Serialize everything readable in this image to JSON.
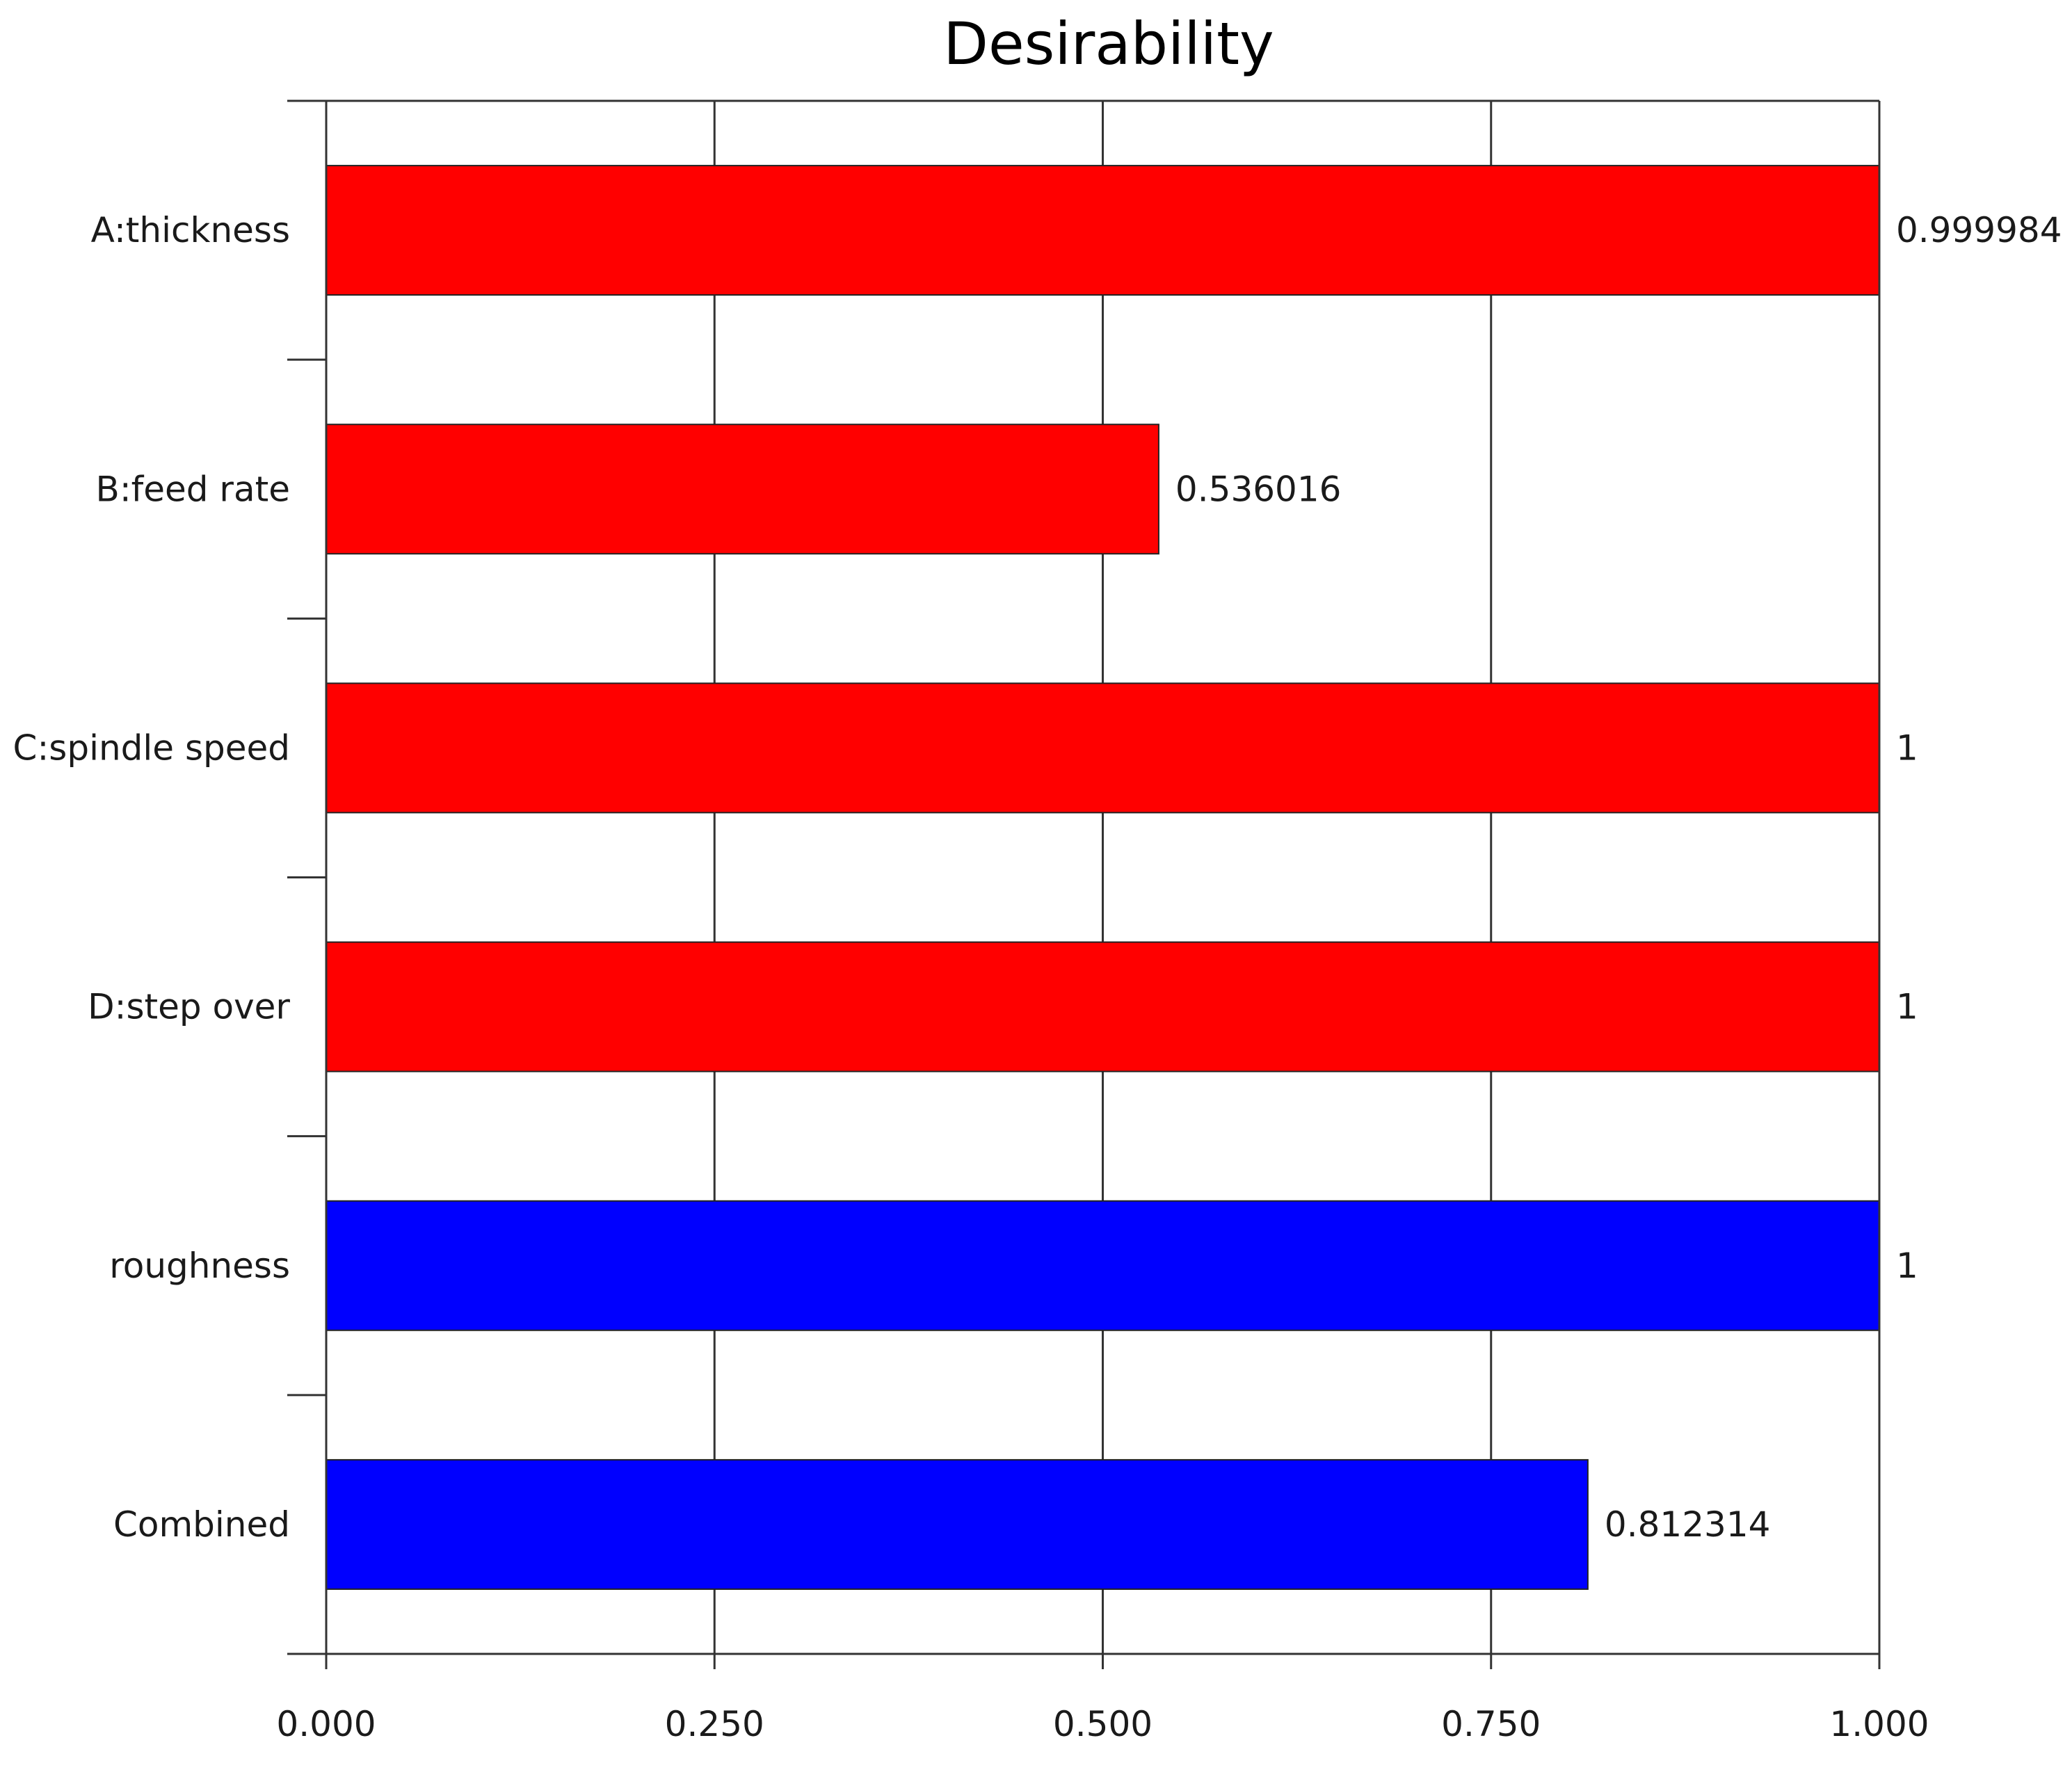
{
  "chart_data": {
    "type": "bar",
    "orientation": "horizontal",
    "title": "Desirability",
    "xlabel": "",
    "ylabel": "",
    "xlim": [
      0,
      1
    ],
    "grid": true,
    "categories": [
      "A:thickness",
      "B:feed rate",
      "C:spindle speed",
      "D:step over",
      "roughness",
      "Combined"
    ],
    "values": [
      0.999984,
      0.536016,
      1,
      1,
      1,
      0.812314
    ],
    "value_labels": [
      "0.999984",
      "0.536016",
      "1",
      "1",
      "1",
      "0.812314"
    ],
    "bar_colors": [
      "#ff0000",
      "#ff0000",
      "#ff0000",
      "#ff0000",
      "#0000ff",
      "#0000ff"
    ],
    "x_ticks": [
      0,
      0.25,
      0.5,
      0.75,
      1
    ],
    "x_tick_labels": [
      "0.000",
      "0.250",
      "0.500",
      "0.750",
      "1.000"
    ]
  }
}
